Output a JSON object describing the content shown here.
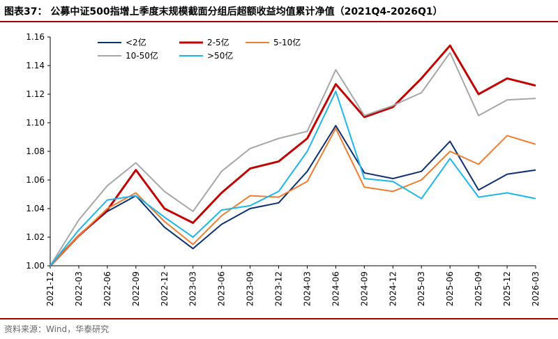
{
  "title": "图表37： 公募中证500指增上季度末规模截面分组后超额收益均值累计净值（2021Q4-2026Q1）",
  "source": "资料来源：Wind，华泰研究",
  "chart_data": {
    "type": "line",
    "title": "图表37： 公募中证500指增上季度末规模截面分组后超额收益均值累计净值（2021Q4-2026Q1）",
    "x": [
      "2021-12",
      "2022-03",
      "2022-06",
      "2022-09",
      "2022-12",
      "2023-03",
      "2023-06",
      "2023-09",
      "2023-12",
      "2024-03",
      "2024-06",
      "2024-09",
      "2024-12",
      "2025-03",
      "2025-06",
      "2025-09",
      "2025-12",
      "2026-03"
    ],
    "ylim": [
      1.0,
      1.16
    ],
    "yticks": [
      "1.00",
      "1.02",
      "1.04",
      "1.06",
      "1.08",
      "1.10",
      "1.12",
      "1.14",
      "1.16"
    ],
    "legend_position": "top",
    "series": [
      {
        "name": "<2亿",
        "color": "#0d2f6e",
        "width": 2,
        "values": [
          1.0,
          1.021,
          1.038,
          1.049,
          1.027,
          1.012,
          1.029,
          1.04,
          1.044,
          1.066,
          1.098,
          1.065,
          1.061,
          1.066,
          1.087,
          1.053,
          1.064,
          1.067
        ]
      },
      {
        "name": "2-5亿",
        "color": "#c00000",
        "width": 3,
        "values": [
          1.0,
          1.021,
          1.039,
          1.067,
          1.04,
          1.03,
          1.051,
          1.068,
          1.073,
          1.089,
          1.127,
          1.104,
          1.111,
          1.131,
          1.154,
          1.12,
          1.131,
          1.126
        ]
      },
      {
        "name": "5-10亿",
        "color": "#ed7d31",
        "width": 2,
        "values": [
          1.0,
          1.021,
          1.04,
          1.051,
          1.031,
          1.015,
          1.035,
          1.049,
          1.048,
          1.059,
          1.096,
          1.055,
          1.052,
          1.06,
          1.08,
          1.071,
          1.091,
          1.085
        ]
      },
      {
        "name": "10-50亿",
        "color": "#a6a6a6",
        "width": 2,
        "values": [
          1.0,
          1.032,
          1.056,
          1.072,
          1.052,
          1.038,
          1.066,
          1.082,
          1.089,
          1.094,
          1.137,
          1.105,
          1.112,
          1.121,
          1.149,
          1.105,
          1.116,
          1.117
        ]
      },
      {
        "name": ">50亿",
        "color": "#1fb5e8",
        "width": 2,
        "values": [
          1.0,
          1.025,
          1.046,
          1.049,
          1.034,
          1.02,
          1.039,
          1.042,
          1.052,
          1.08,
          1.122,
          1.061,
          1.059,
          1.047,
          1.075,
          1.048,
          1.051,
          1.047
        ]
      }
    ]
  }
}
